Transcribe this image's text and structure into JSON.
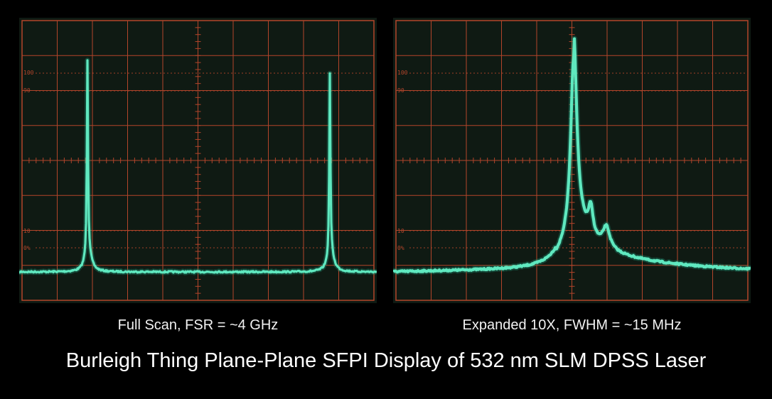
{
  "graticule": {
    "marker_100": "100",
    "marker_90": "90",
    "marker_10": "10",
    "marker_0": "0%"
  },
  "panels": {
    "left": {
      "caption": "Full Scan, FSR = ~4 GHz"
    },
    "right": {
      "caption": "Expanded 10X, FWHM = ~15 MHz"
    }
  },
  "title": "Burleigh Thing Plane-Plane SFPI Display of 532 nm SLM DPSS Laser",
  "colors": {
    "screen_bg": "#0f1a13",
    "grid": "#b3452b",
    "trace": "#5fe8bf",
    "trace_glow": "#1f9c7a"
  }
}
